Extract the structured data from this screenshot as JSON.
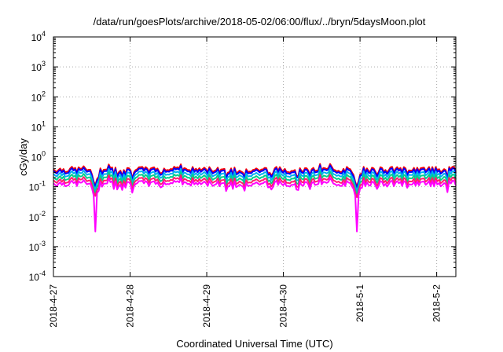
{
  "chart_data": {
    "type": "line",
    "title": "/data/run/goesPlots/archive/2018-05-02/06:00/flux/../bryn/5daysMoon.plot",
    "xlabel": "Coordinated Universal Time (UTC)",
    "ylabel": "cGy/day",
    "yscale": "log",
    "ylim": [
      0.0001,
      10000
    ],
    "xlim": [
      0,
      5.25
    ],
    "y_ticks": [
      {
        "value": 0.0001,
        "base": "10",
        "exp": "-4"
      },
      {
        "value": 0.001,
        "base": "10",
        "exp": "-3"
      },
      {
        "value": 0.01,
        "base": "10",
        "exp": "-2"
      },
      {
        "value": 0.1,
        "base": "10",
        "exp": "-1"
      },
      {
        "value": 1,
        "base": "10",
        "exp": "0"
      },
      {
        "value": 10,
        "base": "10",
        "exp": "1"
      },
      {
        "value": 100,
        "base": "10",
        "exp": "2"
      },
      {
        "value": 1000,
        "base": "10",
        "exp": "3"
      },
      {
        "value": 10000,
        "base": "10",
        "exp": "4"
      }
    ],
    "x_ticks": [
      {
        "value": 0,
        "label": "2018-4-27"
      },
      {
        "value": 1,
        "label": "2018-4-28"
      },
      {
        "value": 2,
        "label": "2018-4-29"
      },
      {
        "value": 3,
        "label": "2018-4-30"
      },
      {
        "value": 4,
        "label": "2018-5-1"
      },
      {
        "value": 5,
        "label": "2018-5-2"
      }
    ],
    "grid": true,
    "series": [
      {
        "color": "#ff0000",
        "scale": 0.38
      },
      {
        "color": "#0000ff",
        "scale": 0.34
      },
      {
        "color": "#00b0f0",
        "scale": 0.27
      },
      {
        "color": "#00d08a",
        "scale": 0.21
      },
      {
        "color": "#ff1f6e",
        "scale": 0.165
      },
      {
        "color": "#ff00ff",
        "scale": 0.13
      }
    ],
    "dips": [
      {
        "x": 0.55,
        "min": 0.0032
      },
      {
        "x": 3.96,
        "min": 0.0032
      }
    ]
  }
}
